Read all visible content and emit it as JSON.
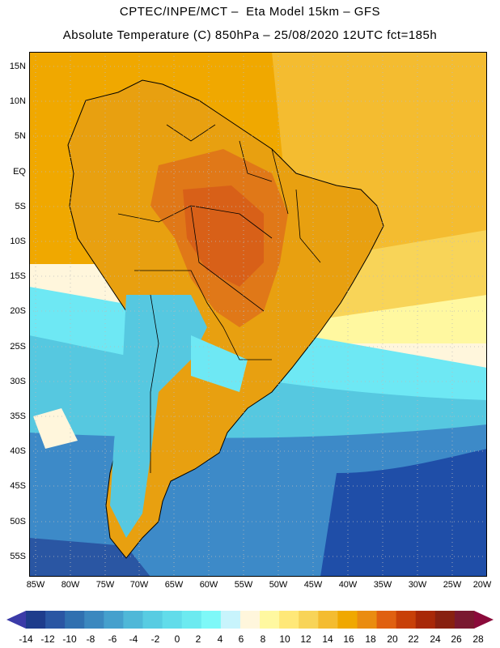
{
  "header": {
    "line1": "CPTEC/INPE/MCT –  Eta Model 15km – GFS",
    "line2": "Absolute Temperature (C) 850hPa – 25/08/2020 12UTC fct=185h"
  },
  "map": {
    "lat_labels": [
      "15N",
      "10N",
      "5N",
      "EQ",
      "5S",
      "10S",
      "15S",
      "20S",
      "25S",
      "30S",
      "35S",
      "40S",
      "45S",
      "50S",
      "55S"
    ],
    "lon_labels": [
      "85W",
      "80W",
      "75W",
      "70W",
      "65W",
      "60W",
      "55W",
      "50W",
      "45W",
      "40W",
      "35W",
      "30W",
      "25W",
      "20W"
    ]
  },
  "colorbar": {
    "labels": [
      "-14",
      "-12",
      "-10",
      "-8",
      "-6",
      "-4",
      "-2",
      "0",
      "2",
      "4",
      "6",
      "8",
      "10",
      "12",
      "14",
      "16",
      "18",
      "20",
      "22",
      "24",
      "26",
      "28"
    ],
    "colors": [
      "#1e3c8c",
      "#2a56a3",
      "#3070b0",
      "#3b88bf",
      "#45a0cd",
      "#4fb8d8",
      "#58cce2",
      "#62dcea",
      "#6ceaf0",
      "#7ef8f8",
      "#c8f4fc",
      "#fff6dc",
      "#fff8a0",
      "#ffe878",
      "#f8d458",
      "#f4bc30",
      "#f0a800",
      "#ea8c10",
      "#e06010",
      "#c84008",
      "#a82808",
      "#882010",
      "#7a1830"
    ],
    "low_arrow_color": "#3b3ba8",
    "high_arrow_color": "#8a0a3a"
  },
  "palette": {
    "ocean_south_deep": "#1f4ea8",
    "ocean_south_mid": "#3d8ac8",
    "ocean_cold": "#56c8e0",
    "ocean_cyan": "#6ee8f4",
    "ocean_pale": "#d8f6fc",
    "cream": "#fff6dc",
    "yellow": "#ffe878",
    "gold": "#f4bc30",
    "orange": "#f0a800",
    "dark_orange": "#e07818",
    "hot": "#d86018"
  }
}
